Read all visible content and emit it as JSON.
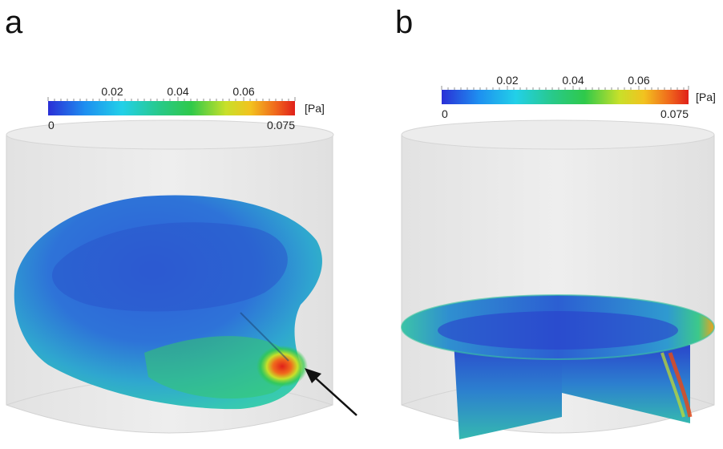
{
  "panels": [
    {
      "letter": "a",
      "colorbar": {
        "min_label": "0",
        "max_label": "0.075",
        "ticks": [
          "0.02",
          "0.04",
          "0.06"
        ],
        "unit": "[Pa]"
      },
      "annotation": "arrow pointing to high-stress region"
    },
    {
      "letter": "b",
      "colorbar": {
        "min_label": "0",
        "max_label": "0.075",
        "ticks": [
          "0.02",
          "0.04",
          "0.06"
        ],
        "unit": "[Pa]"
      }
    }
  ],
  "colors": {
    "colormap": [
      "#2a2fd6",
      "#1e8ff0",
      "#22d0e8",
      "#28c98a",
      "#2fc94a",
      "#c8e02a",
      "#f2c21f",
      "#f06a1c",
      "#e0201a"
    ],
    "cylinder_fill": "#e4e4e4",
    "cylinder_edge": "#cfcfcf"
  }
}
